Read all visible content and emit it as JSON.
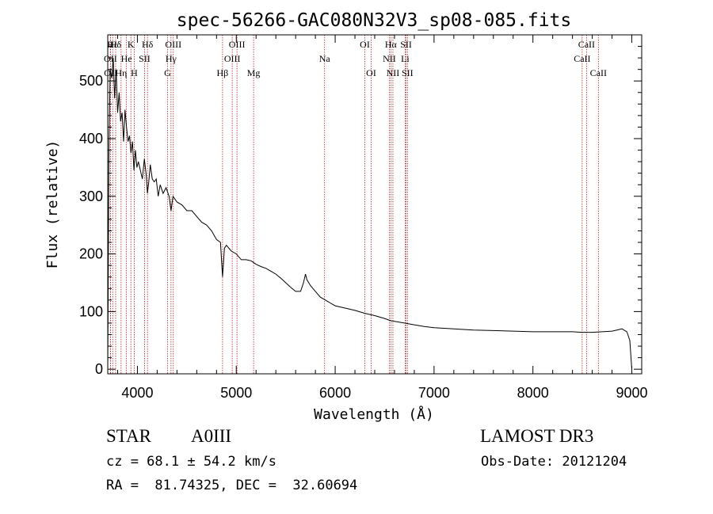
{
  "chart_data": {
    "type": "line",
    "title": "spec-56266-GAC080N32V3_sp08-085.fits",
    "xlabel": "Wavelength (Å)",
    "ylabel": "Flux (relative)",
    "xlim": [
      3700,
      9100
    ],
    "ylim": [
      -8,
      580
    ],
    "x_ticks": [
      4000,
      5000,
      6000,
      7000,
      8000,
      9000
    ],
    "y_ticks": [
      0,
      100,
      200,
      300,
      400,
      500
    ],
    "series": [
      {
        "name": "flux",
        "points": [
          [
            3700,
            0
          ],
          [
            3712,
            380
          ],
          [
            3725,
            520
          ],
          [
            3740,
            505
          ],
          [
            3755,
            540
          ],
          [
            3770,
            470
          ],
          [
            3785,
            520
          ],
          [
            3800,
            445
          ],
          [
            3815,
            480
          ],
          [
            3830,
            430
          ],
          [
            3845,
            445
          ],
          [
            3860,
            395
          ],
          [
            3875,
            450
          ],
          [
            3890,
            420
          ],
          [
            3905,
            395
          ],
          [
            3920,
            405
          ],
          [
            3935,
            375
          ],
          [
            3950,
            395
          ],
          [
            3965,
            345
          ],
          [
            3980,
            380
          ],
          [
            3995,
            350
          ],
          [
            4010,
            360
          ],
          [
            4030,
            345
          ],
          [
            4050,
            330
          ],
          [
            4070,
            365
          ],
          [
            4090,
            335
          ],
          [
            4101,
            305
          ],
          [
            4115,
            325
          ],
          [
            4130,
            355
          ],
          [
            4150,
            330
          ],
          [
            4170,
            325
          ],
          [
            4190,
            330
          ],
          [
            4210,
            300
          ],
          [
            4230,
            320
          ],
          [
            4260,
            305
          ],
          [
            4290,
            315
          ],
          [
            4320,
            300
          ],
          [
            4340,
            275
          ],
          [
            4360,
            300
          ],
          [
            4400,
            290
          ],
          [
            4450,
            285
          ],
          [
            4500,
            275
          ],
          [
            4550,
            275
          ],
          [
            4600,
            265
          ],
          [
            4650,
            255
          ],
          [
            4700,
            250
          ],
          [
            4750,
            240
          ],
          [
            4800,
            225
          ],
          [
            4840,
            220
          ],
          [
            4861,
            160
          ],
          [
            4880,
            210
          ],
          [
            4900,
            215
          ],
          [
            4950,
            205
          ],
          [
            5000,
            200
          ],
          [
            5050,
            190
          ],
          [
            5100,
            190
          ],
          [
            5150,
            188
          ],
          [
            5200,
            182
          ],
          [
            5250,
            178
          ],
          [
            5300,
            175
          ],
          [
            5350,
            170
          ],
          [
            5400,
            165
          ],
          [
            5450,
            158
          ],
          [
            5500,
            150
          ],
          [
            5550,
            142
          ],
          [
            5600,
            135
          ],
          [
            5650,
            135
          ],
          [
            5680,
            150
          ],
          [
            5700,
            165
          ],
          [
            5715,
            155
          ],
          [
            5750,
            145
          ],
          [
            5800,
            135
          ],
          [
            5850,
            125
          ],
          [
            5900,
            120
          ],
          [
            5950,
            115
          ],
          [
            6000,
            110
          ],
          [
            6100,
            106
          ],
          [
            6200,
            102
          ],
          [
            6300,
            97
          ],
          [
            6400,
            93
          ],
          [
            6500,
            88
          ],
          [
            6563,
            84
          ],
          [
            6600,
            83
          ],
          [
            6700,
            80
          ],
          [
            6800,
            77
          ],
          [
            6900,
            74
          ],
          [
            7000,
            72
          ],
          [
            7200,
            70
          ],
          [
            7400,
            68
          ],
          [
            7600,
            67
          ],
          [
            7800,
            66
          ],
          [
            8000,
            65
          ],
          [
            8200,
            65
          ],
          [
            8400,
            65
          ],
          [
            8500,
            64
          ],
          [
            8600,
            64
          ],
          [
            8700,
            65
          ],
          [
            8800,
            66
          ],
          [
            8850,
            68
          ],
          [
            8900,
            70
          ],
          [
            8950,
            65
          ],
          [
            8980,
            50
          ],
          [
            9000,
            0
          ]
        ]
      }
    ],
    "line_markers": [
      {
        "label": "Hε",
        "wavelength": 3750,
        "row": 0
      },
      {
        "label": "Hδ",
        "wavelength": 3780,
        "row": 0
      },
      {
        "label": "K",
        "wavelength": 3934,
        "row": 0
      },
      {
        "label": "Hδ",
        "wavelength": 4102,
        "row": 0
      },
      {
        "label": "OIII",
        "wavelength": 4363,
        "row": 0
      },
      {
        "label": "OIII",
        "wavelength": 5007,
        "row": 0
      },
      {
        "label": "OI",
        "wavelength": 6300,
        "row": 0
      },
      {
        "label": "Hα",
        "wavelength": 6563,
        "row": 0
      },
      {
        "label": "SII",
        "wavelength": 6717,
        "row": 0
      },
      {
        "label": "CaII",
        "wavelength": 8542,
        "row": 0
      },
      {
        "label": "OII",
        "wavelength": 3727,
        "row": 1
      },
      {
        "label": "He",
        "wavelength": 3889,
        "row": 1
      },
      {
        "label": "SII",
        "wavelength": 4072,
        "row": 1
      },
      {
        "label": "Hγ",
        "wavelength": 4340,
        "row": 1
      },
      {
        "label": "OIII",
        "wavelength": 4959,
        "row": 1
      },
      {
        "label": "Na",
        "wavelength": 5893,
        "row": 1
      },
      {
        "label": "NII",
        "wavelength": 6548,
        "row": 1
      },
      {
        "label": "Li",
        "wavelength": 6708,
        "row": 1
      },
      {
        "label": "CaII",
        "wavelength": 8498,
        "row": 1
      },
      {
        "label": "OII",
        "wavelength": 3729,
        "row": 2
      },
      {
        "label": "Hη",
        "wavelength": 3835,
        "row": 2
      },
      {
        "label": "H",
        "wavelength": 3968,
        "row": 2
      },
      {
        "label": "G",
        "wavelength": 4305,
        "row": 2
      },
      {
        "label": "Hβ",
        "wavelength": 4861,
        "row": 2
      },
      {
        "label": "Mg",
        "wavelength": 5175,
        "row": 2
      },
      {
        "label": "OI",
        "wavelength": 6364,
        "row": 2
      },
      {
        "label": "NII",
        "wavelength": 6584,
        "row": 2
      },
      {
        "label": "SII",
        "wavelength": 6731,
        "row": 2
      },
      {
        "label": "CaII",
        "wavelength": 8662,
        "row": 2
      }
    ]
  },
  "footer": {
    "class": "STAR",
    "subclass": "A0III",
    "survey": "LAMOST DR3",
    "redshift": "cz = 68.1 ± 54.2 km/s",
    "obs_date": "Obs-Date: 20121204",
    "coords": "RA =  81.74325, DEC =  32.60694"
  },
  "colors": {
    "marker_line": "#b22222",
    "ink": "#000000"
  }
}
